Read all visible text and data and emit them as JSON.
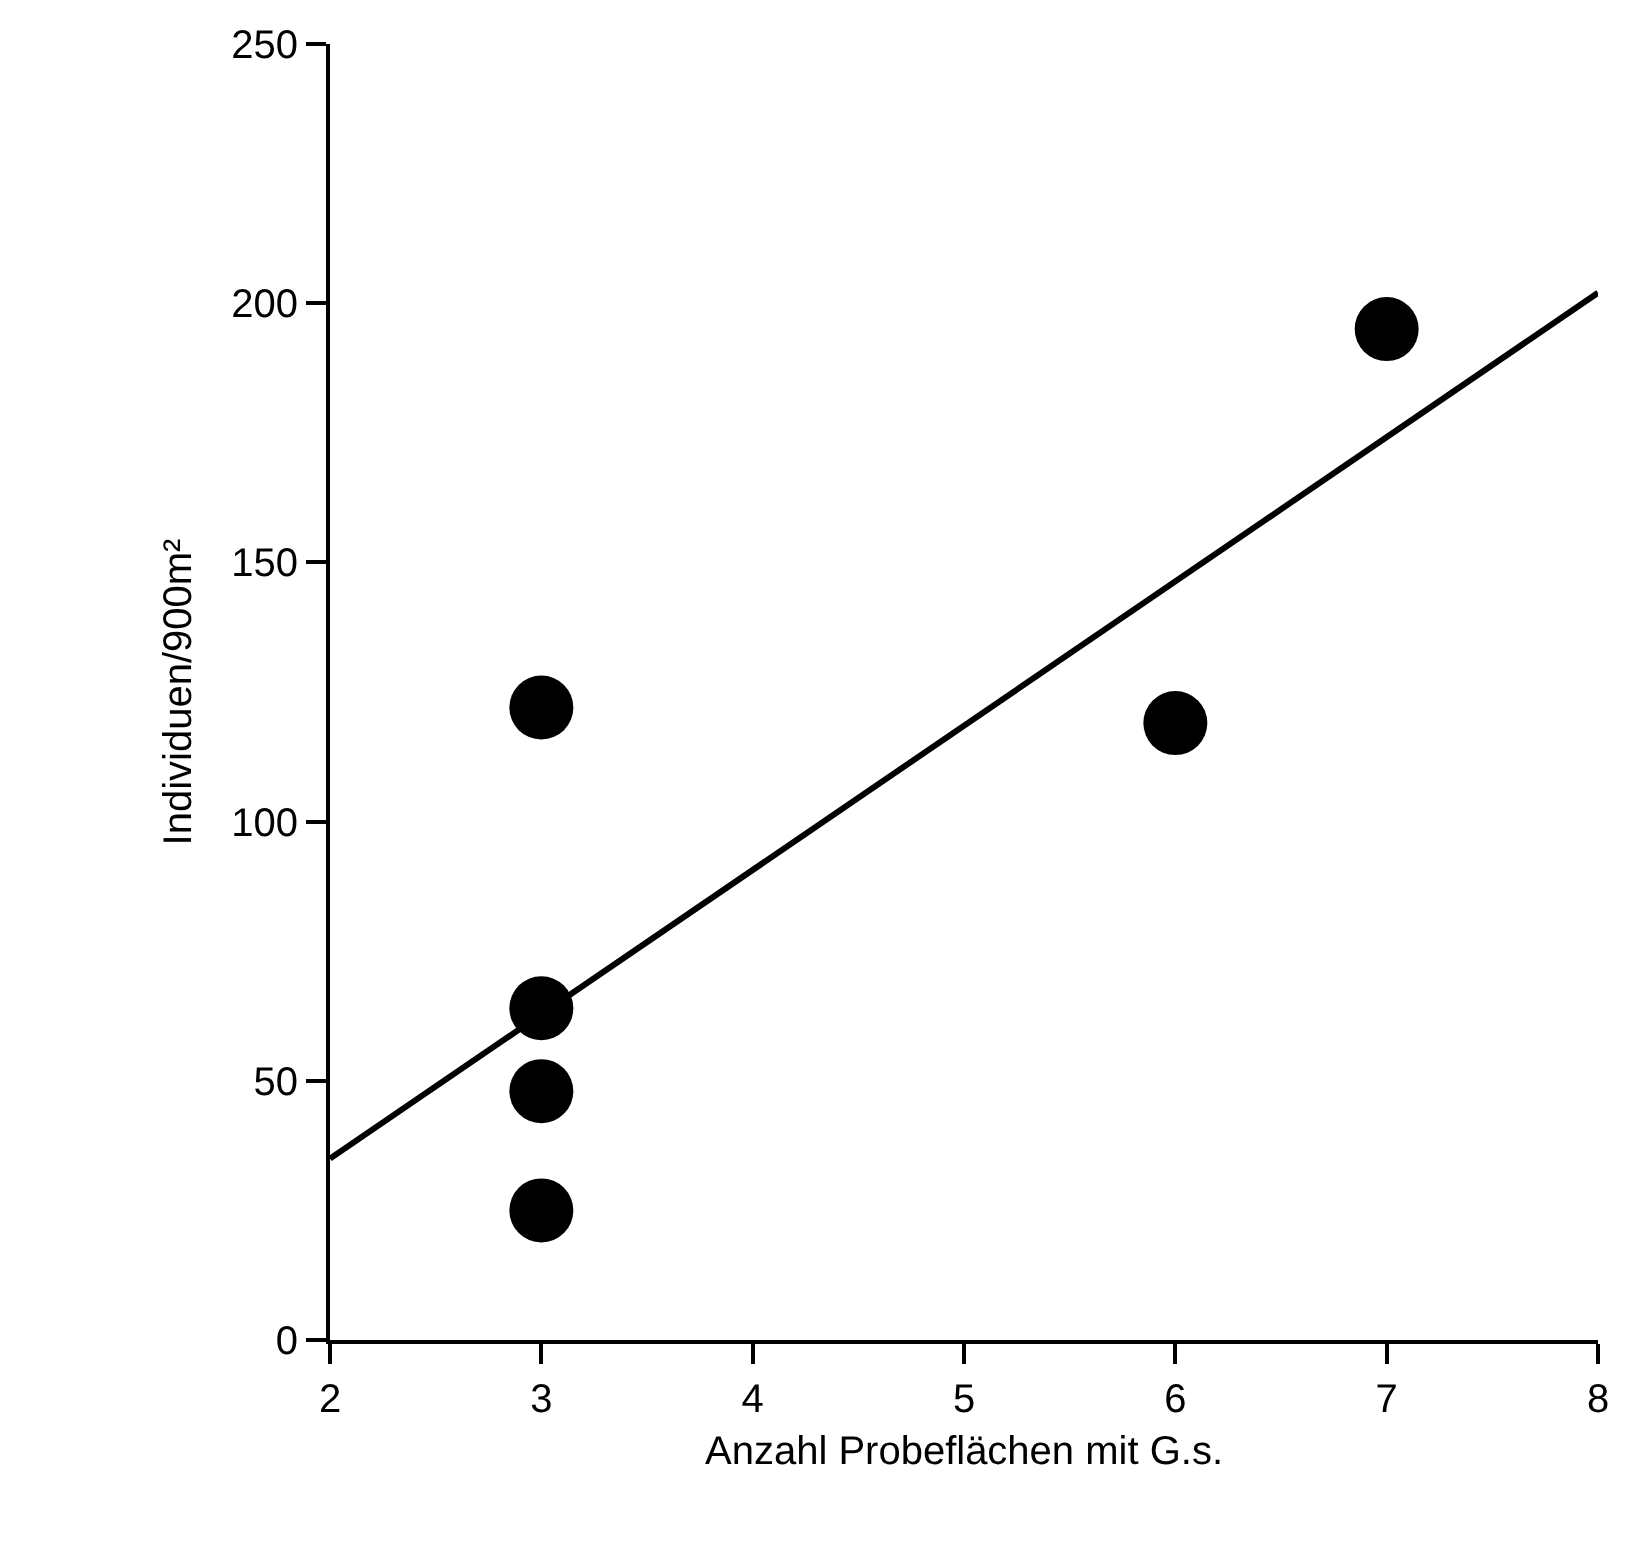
{
  "chart_data": {
    "type": "scatter",
    "xlabel": "Anzahl Probeflächen mit G.s.",
    "ylabel": "Individuen/900m²",
    "x": [
      3,
      3,
      3,
      3,
      6,
      7
    ],
    "series": [
      {
        "color": "#000000",
        "values": [
          122,
          64,
          48,
          25,
          119,
          195
        ],
        "marker": "circle"
      },
      {
        "type": "line",
        "color": "#000000",
        "x": [
          2,
          8
        ],
        "values": [
          35,
          202
        ],
        "marker": "none",
        "line_style": "solid"
      }
    ],
    "xlim": [
      2,
      8
    ],
    "xticks": [
      2,
      3,
      4,
      5,
      6,
      7,
      8
    ],
    "ylim": [
      0,
      250
    ],
    "yticks": [
      0,
      50,
      100,
      150,
      200,
      250
    ]
  }
}
